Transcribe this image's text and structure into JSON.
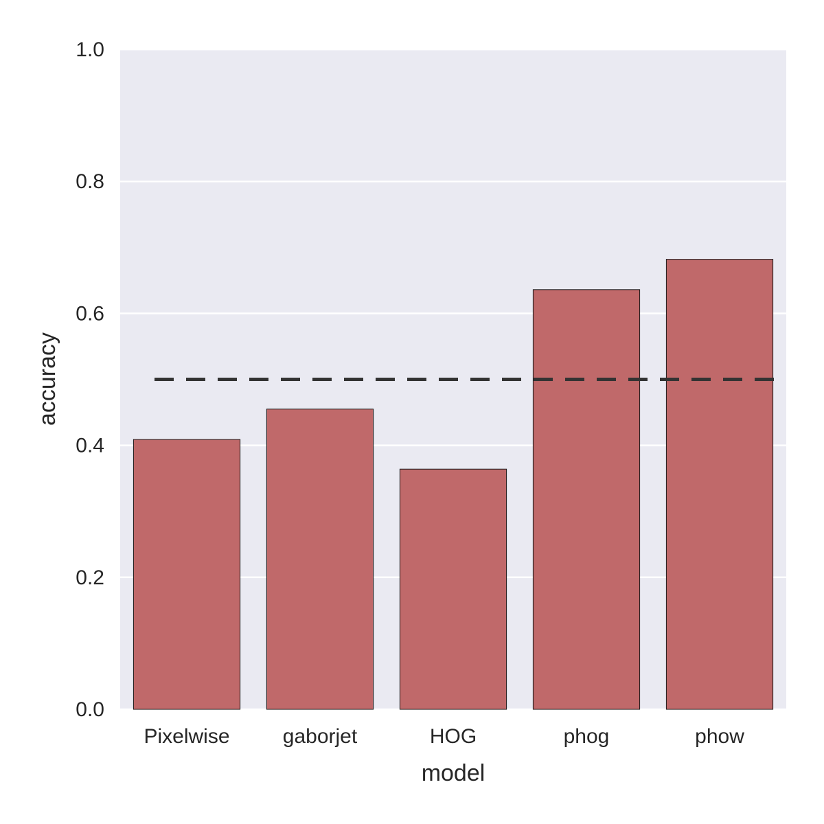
{
  "chart_data": {
    "type": "bar",
    "categories": [
      "Pixelwise",
      "gaborjet",
      "HOG",
      "phog",
      "phow"
    ],
    "values": [
      0.409,
      0.455,
      0.364,
      0.636,
      0.682
    ],
    "xlabel": "model",
    "ylabel": "accuracy",
    "ylim": [
      0,
      1.0
    ],
    "yticks": [
      "0.0",
      "0.2",
      "0.4",
      "0.6",
      "0.8",
      "1.0"
    ],
    "reference_line": {
      "value": 0.5,
      "style": "dashed"
    },
    "grid": true,
    "colors": {
      "bar": "#c0696a",
      "bar_edge": "#1a1a1a",
      "background": "#eaeaf2",
      "grid": "#ffffff",
      "reference_line": "#333333"
    }
  }
}
